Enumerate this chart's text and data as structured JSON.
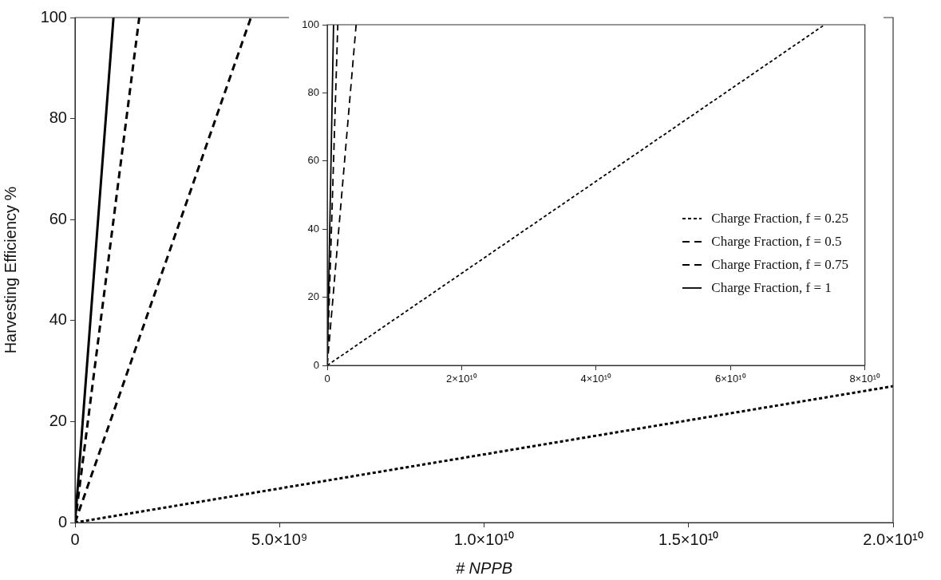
{
  "chart_data": [
    {
      "type": "line",
      "xlabel": "# NPPB",
      "ylabel": "Harvesting Efficiency %",
      "xlim": [
        0,
        20000000000
      ],
      "ylim": [
        0,
        100
      ],
      "xticks": [
        0,
        {
          "value": 5000000000,
          "label": "5.0×10⁹"
        },
        {
          "value": 10000000000,
          "label": "1.0×10¹⁰"
        },
        {
          "value": 15000000000,
          "label": "1.5×10¹⁰"
        },
        {
          "value": 20000000000,
          "label": "2.0×10¹⁰"
        }
      ],
      "yticks": [
        0,
        20,
        40,
        60,
        80,
        100
      ],
      "grid": false,
      "legend": false,
      "marker": "none",
      "series": [
        {
          "color": "#000000",
          "line_style": "dotted",
          "x": [
            0,
            20000000000
          ],
          "values": [
            0,
            27
          ]
        },
        {
          "color": "#000000",
          "line_style": "dashed",
          "x": [
            0,
            4300000000
          ],
          "values": [
            0,
            100
          ]
        },
        {
          "color": "#000000",
          "line_style": "dashed",
          "x": [
            0,
            1570000000
          ],
          "values": [
            0,
            100
          ]
        },
        {
          "color": "#000000",
          "line_style": "solid",
          "x": [
            0,
            940000000
          ],
          "values": [
            0,
            100
          ]
        }
      ]
    },
    {
      "type": "line",
      "xlim": [
        0,
        80000000000
      ],
      "ylim": [
        0,
        100
      ],
      "xticks": [
        0,
        {
          "value": 20000000000,
          "label": "2×10¹⁰"
        },
        {
          "value": 40000000000,
          "label": "4×10¹⁰"
        },
        {
          "value": 60000000000,
          "label": "6×10¹⁰"
        },
        {
          "value": 80000000000,
          "label": "8×10¹⁰"
        }
      ],
      "yticks": [
        0,
        20,
        40,
        60,
        80,
        100
      ],
      "grid": false,
      "legend": "right",
      "marker": "none",
      "series": [
        {
          "name": "Charge Fraction, f = 0.25",
          "color": "#000000",
          "line_style": "dotted",
          "x": [
            0,
            74000000000
          ],
          "values": [
            0,
            100
          ]
        },
        {
          "name": "Charge Fraction, f = 0.5",
          "color": "#000000",
          "line_style": "dashed",
          "x": [
            0,
            4300000000
          ],
          "values": [
            0,
            100
          ]
        },
        {
          "name": "Charge Fraction, f = 0.75",
          "color": "#000000",
          "line_style": "dashed",
          "x": [
            0,
            1570000000
          ],
          "values": [
            0,
            100
          ]
        },
        {
          "name": "Charge Fraction, f = 1",
          "color": "#000000",
          "line_style": "solid",
          "x": [
            0,
            940000000
          ],
          "values": [
            0,
            100
          ]
        }
      ]
    }
  ]
}
